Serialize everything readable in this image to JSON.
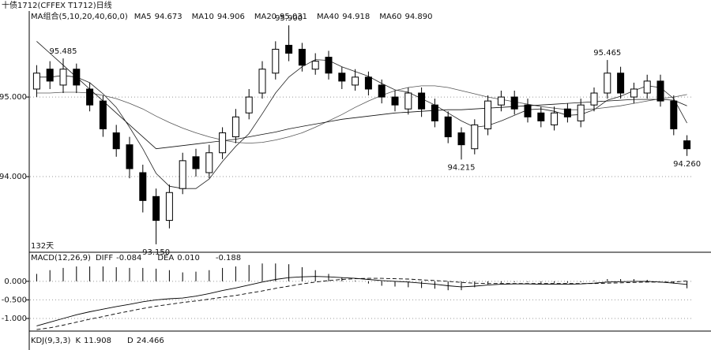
{
  "chart_data": [
    {
      "type": "candlestick",
      "title": "十债1712(CFFEX T1712)日线",
      "period_label": "132天",
      "categories": [
        null,
        null,
        null,
        null,
        null,
        null,
        null,
        null,
        null,
        null,
        null,
        null,
        null,
        null,
        null,
        null,
        null,
        null,
        null,
        null,
        null,
        null,
        null,
        null,
        null,
        null,
        null,
        null,
        null,
        null,
        null,
        null,
        null,
        null,
        null,
        null,
        null,
        null,
        null,
        null,
        null,
        null,
        null,
        null,
        null,
        null,
        null,
        null,
        null,
        null
      ],
      "ylim": [
        93.05,
        96.08
      ],
      "yticks": [
        {
          "value": 94,
          "label": "94.000"
        },
        {
          "value": 95,
          "label": "95.000"
        }
      ],
      "grid": true,
      "ma_header": "MA组合(5,10,20,40,60,0)",
      "ma_legend": [
        {
          "name": "MA5",
          "value": 94.673
        },
        {
          "name": "MA10",
          "value": 94.906
        },
        {
          "name": "MA20",
          "value": 95.031
        },
        {
          "name": "MA40",
          "value": 94.918
        },
        {
          "name": "MA60",
          "value": 94.89,
          "label": "94.890"
        }
      ],
      "ma_lines": [
        {
          "color": "#222222",
          "values": [
            95.25,
            95.25,
            95.27,
            95.25,
            95.18,
            95.04,
            94.87,
            94.62,
            94.35,
            94.04,
            93.88,
            93.85,
            93.85,
            93.97,
            94.19,
            94.38,
            94.54,
            94.79,
            95.05,
            95.25,
            95.38,
            95.47,
            95.46,
            95.38,
            95.32,
            95.26,
            95.17,
            95.09,
            95.06,
            94.98,
            94.9,
            94.8,
            94.7,
            94.62,
            94.64,
            94.7,
            94.77,
            94.84,
            94.85,
            94.82,
            94.77,
            94.78,
            94.84,
            94.96,
            95.01,
            95.08,
            95.14,
            95.12,
            94.98,
            94.673
          ]
        },
        {
          "color": "#555555",
          "values": [
            95.05,
            95.05,
            95.06,
            95.06,
            95.05,
            95.02,
            94.98,
            94.92,
            94.85,
            94.76,
            94.68,
            94.61,
            94.55,
            94.5,
            94.46,
            94.43,
            94.42,
            94.43,
            94.46,
            94.5,
            94.55,
            94.62,
            94.7,
            94.78,
            94.87,
            94.95,
            95.02,
            95.08,
            95.12,
            95.14,
            95.14,
            95.12,
            95.08,
            95.04,
            95,
            94.97,
            94.94,
            94.91,
            94.88,
            94.86,
            94.84,
            94.84,
            94.85,
            94.87,
            94.89,
            94.92,
            94.95,
            94.98,
            95,
            95.031
          ]
        },
        {
          "color": "#111111",
          "values": [
            95.7,
            95.55,
            95.4,
            95.25,
            95.1,
            94.95,
            94.8,
            94.65,
            94.5,
            94.35,
            94.37,
            94.39,
            94.41,
            94.43,
            94.45,
            94.47,
            94.5,
            94.53,
            94.56,
            94.6,
            94.63,
            94.66,
            94.69,
            94.72,
            94.74,
            94.76,
            94.78,
            94.8,
            94.81,
            94.82,
            94.83,
            94.84,
            94.84,
            94.85,
            94.86,
            94.87,
            94.88,
            94.89,
            94.9,
            94.91,
            94.92,
            94.93,
            94.94,
            94.95,
            94.96,
            94.97,
            94.97,
            94.97,
            94.96,
            94.89
          ]
        }
      ],
      "candles": [
        {
          "open": 95.1,
          "high": 95.4,
          "low": 95.0,
          "close": 95.3
        },
        {
          "open": 95.35,
          "high": 95.45,
          "low": 95.1,
          "close": 95.2
        },
        {
          "open": 95.15,
          "high": 95.485,
          "low": 95.05,
          "close": 95.35,
          "high_label": "95.485"
        },
        {
          "open": 95.35,
          "high": 95.42,
          "low": 95.05,
          "close": 95.15
        },
        {
          "open": 95.1,
          "high": 95.18,
          "low": 94.82,
          "close": 94.9
        },
        {
          "open": 94.95,
          "high": 95.02,
          "low": 94.5,
          "close": 94.6
        },
        {
          "open": 94.55,
          "high": 94.65,
          "low": 94.25,
          "close": 94.35
        },
        {
          "open": 94.4,
          "high": 94.5,
          "low": 93.98,
          "close": 94.1
        },
        {
          "open": 94.05,
          "high": 94.15,
          "low": 93.55,
          "close": 93.7
        },
        {
          "open": 93.75,
          "high": 93.85,
          "low": 93.15,
          "close": 93.45,
          "low_label": "93.150"
        },
        {
          "open": 93.45,
          "high": 93.9,
          "low": 93.35,
          "close": 93.8
        },
        {
          "open": 93.85,
          "high": 94.3,
          "low": 93.78,
          "close": 94.2
        },
        {
          "open": 94.25,
          "high": 94.35,
          "low": 94.0,
          "close": 94.1
        },
        {
          "open": 94.05,
          "high": 94.4,
          "low": 93.98,
          "close": 94.3
        },
        {
          "open": 94.3,
          "high": 94.62,
          "low": 94.22,
          "close": 94.55
        },
        {
          "open": 94.5,
          "high": 94.85,
          "low": 94.42,
          "close": 94.75
        },
        {
          "open": 94.8,
          "high": 95.1,
          "low": 94.72,
          "close": 95.0
        },
        {
          "open": 95.05,
          "high": 95.45,
          "low": 94.98,
          "close": 95.35
        },
        {
          "open": 95.3,
          "high": 95.7,
          "low": 95.22,
          "close": 95.6
        },
        {
          "open": 95.65,
          "high": 95.9,
          "low": 95.45,
          "close": 95.55,
          "high_label": "95.900"
        },
        {
          "open": 95.6,
          "high": 95.68,
          "low": 95.32,
          "close": 95.4
        },
        {
          "open": 95.35,
          "high": 95.55,
          "low": 95.28,
          "close": 95.45
        },
        {
          "open": 95.5,
          "high": 95.58,
          "low": 95.22,
          "close": 95.3
        },
        {
          "open": 95.3,
          "high": 95.38,
          "low": 95.1,
          "close": 95.2
        },
        {
          "open": 95.15,
          "high": 95.35,
          "low": 95.08,
          "close": 95.25
        },
        {
          "open": 95.25,
          "high": 95.32,
          "low": 95.02,
          "close": 95.1
        },
        {
          "open": 95.15,
          "high": 95.22,
          "low": 94.92,
          "close": 95.0
        },
        {
          "open": 95.0,
          "high": 95.08,
          "low": 94.82,
          "close": 94.9
        },
        {
          "open": 94.85,
          "high": 95.12,
          "low": 94.78,
          "close": 95.05
        },
        {
          "open": 95.05,
          "high": 95.12,
          "low": 94.75,
          "close": 94.85
        },
        {
          "open": 94.9,
          "high": 94.98,
          "low": 94.62,
          "close": 94.7
        },
        {
          "open": 94.75,
          "high": 94.82,
          "low": 94.42,
          "close": 94.5
        },
        {
          "open": 94.55,
          "high": 94.62,
          "low": 94.215,
          "close": 94.4,
          "low_label": "94.215"
        },
        {
          "open": 94.35,
          "high": 94.72,
          "low": 94.28,
          "close": 94.65
        },
        {
          "open": 94.6,
          "high": 95.02,
          "low": 94.52,
          "close": 94.95
        },
        {
          "open": 94.9,
          "high": 95.08,
          "low": 94.82,
          "close": 95.0
        },
        {
          "open": 95.0,
          "high": 95.08,
          "low": 94.78,
          "close": 94.85
        },
        {
          "open": 94.9,
          "high": 94.98,
          "low": 94.68,
          "close": 94.75
        },
        {
          "open": 94.8,
          "high": 94.88,
          "low": 94.62,
          "close": 94.7
        },
        {
          "open": 94.65,
          "high": 94.88,
          "low": 94.58,
          "close": 94.8
        },
        {
          "open": 94.85,
          "high": 94.92,
          "low": 94.68,
          "close": 94.75
        },
        {
          "open": 94.7,
          "high": 94.98,
          "low": 94.62,
          "close": 94.9
        },
        {
          "open": 94.9,
          "high": 95.12,
          "low": 94.82,
          "close": 95.05
        },
        {
          "open": 95.05,
          "high": 95.465,
          "low": 94.98,
          "close": 95.3,
          "high_label": "95.465"
        },
        {
          "open": 95.3,
          "high": 95.38,
          "low": 94.98,
          "close": 95.05
        },
        {
          "open": 95.0,
          "high": 95.18,
          "low": 94.92,
          "close": 95.1
        },
        {
          "open": 95.05,
          "high": 95.28,
          "low": 94.98,
          "close": 95.2
        },
        {
          "open": 95.2,
          "high": 95.28,
          "low": 94.88,
          "close": 94.95
        },
        {
          "open": 94.95,
          "high": 95.02,
          "low": 94.52,
          "close": 94.6
        },
        {
          "open": 94.45,
          "high": 94.52,
          "low": 94.26,
          "close": 94.35,
          "low_label": "94.260"
        }
      ]
    },
    {
      "type": "macd",
      "title": "MACD(12,26,9)",
      "ylim": [
        -1.34,
        0.74
      ],
      "yticks": [
        {
          "value": 0,
          "label": "0.000"
        },
        {
          "value": -0.5,
          "label": "-0.500"
        },
        {
          "value": -1,
          "label": "-1.000"
        }
      ],
      "grid": true,
      "legend": [
        {
          "name": "DIFF",
          "value": -0.084
        },
        {
          "name": "DEA",
          "value": 0.01,
          "label": "0.010"
        },
        {
          "value": -0.188
        }
      ],
      "diff": [
        -1.2,
        -1.1,
        -1.0,
        -0.9,
        -0.82,
        -0.75,
        -0.68,
        -0.62,
        -0.55,
        -0.5,
        -0.47,
        -0.45,
        -0.4,
        -0.33,
        -0.25,
        -0.18,
        -0.1,
        -0.02,
        0.05,
        0.1,
        0.12,
        0.13,
        0.12,
        0.1,
        0.08,
        0.05,
        0.02,
        0.0,
        -0.02,
        -0.05,
        -0.08,
        -0.12,
        -0.15,
        -0.13,
        -0.1,
        -0.08,
        -0.07,
        -0.07,
        -0.08,
        -0.08,
        -0.08,
        -0.07,
        -0.05,
        -0.02,
        -0.01,
        0.0,
        0.0,
        -0.02,
        -0.05,
        -0.084
      ],
      "dea": [
        -1.3,
        -1.25,
        -1.18,
        -1.1,
        -1.02,
        -0.95,
        -0.87,
        -0.8,
        -0.73,
        -0.67,
        -0.62,
        -0.57,
        -0.53,
        -0.48,
        -0.43,
        -0.38,
        -0.32,
        -0.26,
        -0.19,
        -0.13,
        -0.07,
        -0.02,
        0.02,
        0.05,
        0.07,
        0.08,
        0.08,
        0.07,
        0.06,
        0.04,
        0.02,
        0.0,
        -0.03,
        -0.05,
        -0.06,
        -0.06,
        -0.06,
        -0.06,
        -0.06,
        -0.06,
        -0.06,
        -0.06,
        -0.06,
        -0.05,
        -0.04,
        -0.03,
        -0.02,
        -0.02,
        -0.02,
        0.01
      ],
      "hist": [
        0.2,
        0.3,
        0.36,
        0.4,
        0.4,
        0.4,
        0.38,
        0.36,
        0.36,
        0.34,
        0.3,
        0.24,
        0.26,
        0.3,
        0.36,
        0.4,
        0.44,
        0.48,
        0.48,
        0.46,
        0.38,
        0.3,
        0.2,
        0.1,
        0.02,
        -0.06,
        -0.12,
        -0.14,
        -0.16,
        -0.18,
        -0.2,
        -0.24,
        -0.24,
        -0.16,
        -0.08,
        -0.04,
        -0.02,
        -0.02,
        -0.04,
        -0.04,
        -0.04,
        -0.02,
        0.02,
        0.06,
        0.06,
        0.06,
        0.04,
        0.0,
        -0.06,
        -0.188
      ]
    },
    {
      "type": "kdj",
      "title": "KDJ(9,3,3)",
      "legend": [
        {
          "name": "K",
          "value": 11.908
        },
        {
          "name": "D",
          "value": 24.466
        }
      ]
    }
  ]
}
